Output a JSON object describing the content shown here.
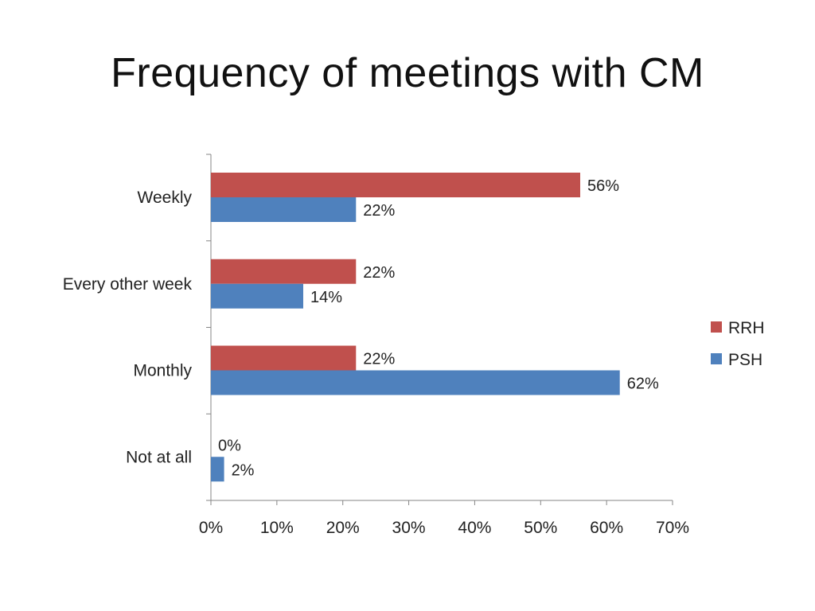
{
  "slide": {
    "title": "Frequency of meetings with CM"
  },
  "colors": {
    "RRH": "#c0504d",
    "PSH": "#4f81bd",
    "axis": "#868686"
  },
  "chart_data": {
    "type": "bar",
    "orientation": "horizontal",
    "title": "Frequency of meetings with CM",
    "xlabel": "",
    "ylabel": "",
    "categories": [
      "Weekly",
      "Every other week",
      "Monthly",
      "Not at all"
    ],
    "series": [
      {
        "name": "RRH",
        "values": [
          56,
          22,
          22,
          0
        ],
        "labels": [
          "56%",
          "22%",
          "22%",
          "0%"
        ]
      },
      {
        "name": "PSH",
        "values": [
          22,
          14,
          62,
          2
        ],
        "labels": [
          "22%",
          "14%",
          "62%",
          "2%"
        ]
      }
    ],
    "xlim": [
      0,
      70
    ],
    "xticks": [
      0,
      10,
      20,
      30,
      40,
      50,
      60,
      70
    ],
    "xtick_labels": [
      "0%",
      "10%",
      "20%",
      "30%",
      "40%",
      "50%",
      "60%",
      "70%"
    ],
    "grid": false,
    "legend": {
      "position": "right",
      "entries": [
        "RRH",
        "PSH"
      ]
    }
  }
}
